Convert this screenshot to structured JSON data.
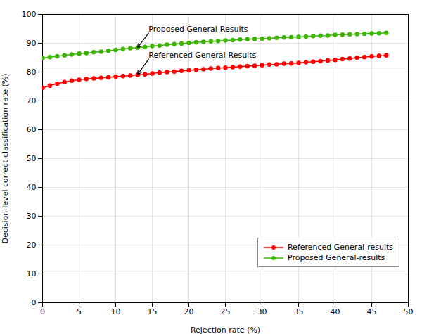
{
  "chart_data": {
    "type": "line",
    "xlabel": "Rejection rate (%)",
    "ylabel": "Decision-level correct classification rate (%)",
    "xlim": [
      0,
      50
    ],
    "ylim": [
      0,
      100
    ],
    "xticks": [
      0,
      5,
      10,
      15,
      20,
      25,
      30,
      35,
      40,
      45,
      50
    ],
    "yticks": [
      0,
      10,
      20,
      30,
      40,
      50,
      60,
      70,
      80,
      90,
      100
    ],
    "grid": true,
    "legend": "lower right",
    "marker": "o",
    "line_style": "solid",
    "x": [
      0,
      1,
      2,
      3,
      4,
      5,
      6,
      7,
      8,
      9,
      10,
      11,
      12,
      13,
      14,
      15,
      16,
      17,
      18,
      19,
      20,
      21,
      22,
      23,
      24,
      25,
      26,
      27,
      28,
      29,
      30,
      31,
      32,
      33,
      34,
      35,
      36,
      37,
      38,
      39,
      40,
      41,
      42,
      43,
      44,
      45,
      46,
      47
    ],
    "series": [
      {
        "name": "Referenced General-results",
        "color": "#FF0000",
        "error": 0.6,
        "values": [
          74.5,
          75.3,
          76.0,
          76.5,
          77.0,
          77.3,
          77.6,
          77.8,
          78.0,
          78.2,
          78.4,
          78.6,
          78.8,
          79.0,
          79.2,
          79.5,
          79.8,
          80.0,
          80.2,
          80.4,
          80.6,
          80.8,
          81.0,
          81.2,
          81.4,
          81.5,
          81.7,
          81.9,
          82.1,
          82.2,
          82.4,
          82.6,
          82.7,
          82.9,
          83.0,
          83.2,
          83.4,
          83.6,
          83.8,
          84.0,
          84.2,
          84.5,
          84.7,
          85.0,
          85.2,
          85.4,
          85.6,
          85.8
        ]
      },
      {
        "name": "Proposed General-results",
        "color": "#3CB500",
        "error": 0.5,
        "values": [
          84.8,
          85.2,
          85.5,
          85.8,
          86.1,
          86.4,
          86.6,
          86.9,
          87.1,
          87.4,
          87.7,
          88.0,
          88.3,
          88.5,
          88.7,
          89.0,
          89.2,
          89.5,
          89.7,
          89.9,
          90.1,
          90.3,
          90.5,
          90.7,
          90.8,
          91.0,
          91.1,
          91.3,
          91.4,
          91.5,
          91.6,
          91.7,
          91.9,
          92.0,
          92.1,
          92.2,
          92.3,
          92.5,
          92.6,
          92.7,
          92.9,
          93.0,
          93.1,
          93.2,
          93.3,
          93.4,
          93.5,
          93.6
        ]
      }
    ],
    "annotations": [
      {
        "text": "Proposed General-Results",
        "x": 13.0,
        "y": 88.5,
        "text_x": 14.5,
        "text_y": 93.5
      },
      {
        "text": "Referenced General-Results",
        "x": 13.0,
        "y": 79.2,
        "text_x": 14.5,
        "text_y": 84.5
      }
    ]
  }
}
